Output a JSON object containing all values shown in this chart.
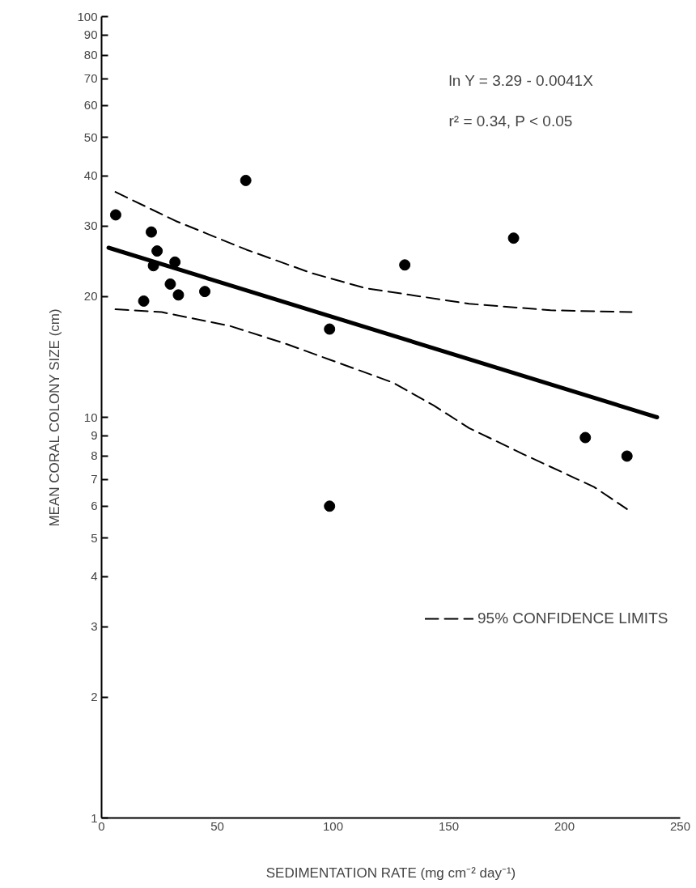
{
  "chart_data": {
    "type": "scatter",
    "xlabel": "SEDIMENTATION RATE (mg cm⁻² day⁻¹)",
    "ylabel": "MEAN CORAL COLONY SIZE (cm)",
    "annotations": [
      "ln Y = 3.29 - 0.0041X",
      "r² = 0.34, P < 0.05"
    ],
    "series": [
      {
        "color": "#000000",
        "marker": "circle",
        "x": [
          6.1,
          21.5,
          24,
          22.4,
          31.7,
          29.7,
          33.2,
          44.6,
          18.2,
          62.3,
          98.5,
          98.5,
          131,
          178,
          209,
          227
        ],
        "values": [
          32,
          29,
          26,
          23.9,
          24.4,
          21.5,
          20.2,
          20.6,
          19.5,
          39,
          16.6,
          6,
          24,
          28,
          8.9,
          8
        ]
      },
      {
        "type": "line",
        "color": "#000000",
        "line_style": "solid",
        "x": [
          3,
          240
        ],
        "values": [
          26.5,
          10
        ]
      },
      {
        "type": "line",
        "name": "95% CONFIDENCE LIMITS",
        "color": "#000000",
        "line_style": "dashed",
        "x": [
          6,
          32,
          62.6,
          90.7,
          114,
          158.8,
          194,
          229
        ],
        "values": [
          36.5,
          30.9,
          26.2,
          22.9,
          21,
          19.2,
          18.5,
          18.3
        ]
      },
      {
        "type": "line",
        "color": "#000000",
        "line_style": "dashed",
        "x": [
          6,
          26,
          55.5,
          79,
          99,
          126,
          143.5,
          158.8,
          182,
          212.8,
          227
        ],
        "values": [
          18.6,
          18.3,
          16.9,
          15.3,
          13.9,
          12.2,
          10.7,
          9.4,
          8.1,
          6.7,
          5.9
        ]
      }
    ],
    "xlim": [
      0,
      250
    ],
    "xticks": [
      0,
      50,
      100,
      150,
      200,
      250
    ],
    "ylim": [
      1,
      100
    ],
    "yticks": [
      1,
      2,
      3,
      4,
      5,
      6,
      7,
      8,
      9,
      10,
      20,
      30,
      40,
      50,
      60,
      70,
      80,
      90,
      100
    ],
    "log": "y",
    "grid": false,
    "legend": "right"
  }
}
